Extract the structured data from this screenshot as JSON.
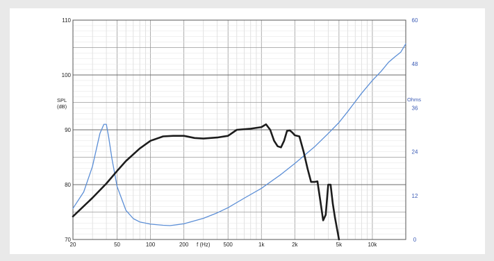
{
  "chart_data": {
    "type": "line",
    "xscale": "log",
    "xlim": [
      20,
      20000
    ],
    "ylim": [
      70,
      110
    ],
    "y2lim": [
      0,
      60
    ],
    "xlabel": "f (Hz)",
    "ylabel_top": "SPL",
    "ylabel_unit": "(dB)",
    "y2label": "Ohms",
    "x_ticks": [
      20,
      50,
      100,
      200,
      500,
      1000,
      2000,
      5000,
      10000
    ],
    "x_tick_labels": [
      "20",
      "50",
      "100",
      "200",
      "500",
      "1k",
      "2k",
      "5k",
      "10k"
    ],
    "y_ticks": [
      70,
      80,
      90,
      100,
      110
    ],
    "y_tick_labels": [
      "70",
      "80",
      "90",
      "100",
      "110"
    ],
    "y2_ticks": [
      0,
      12,
      24,
      36,
      48,
      60
    ],
    "y2_tick_labels": [
      "0",
      "12",
      "24",
      "36",
      "48",
      "60"
    ],
    "grid": true,
    "colors": {
      "spl": "#1c1c1c",
      "impedance": "#5b8ed6",
      "right_axis": "#3b5bb5"
    },
    "series": [
      {
        "axis": "left",
        "x": [
          20,
          30,
          40,
          50,
          60,
          80,
          100,
          130,
          160,
          200,
          250,
          300,
          400,
          500,
          600,
          800,
          1000,
          1100,
          1200,
          1300,
          1400,
          1500,
          1600,
          1700,
          1800,
          1900,
          2000,
          2200,
          2400,
          2600,
          2800,
          3000,
          3200,
          3400,
          3600,
          3800,
          4000,
          4200,
          4400,
          4600,
          4800,
          5000
        ],
        "y": [
          74.2,
          77.6,
          80.2,
          82.5,
          84.3,
          86.6,
          88.0,
          88.8,
          88.9,
          88.9,
          88.5,
          88.4,
          88.6,
          88.9,
          90.0,
          90.2,
          90.5,
          91.0,
          90.0,
          88.0,
          87.0,
          86.8,
          88.0,
          89.8,
          89.9,
          89.5,
          89.0,
          88.8,
          86.0,
          83.0,
          80.5,
          80.5,
          80.6,
          77.0,
          73.5,
          74.5,
          80.0,
          80.0,
          76.5,
          74.0,
          72.0,
          70.0
        ]
      },
      {
        "axis": "right",
        "x": [
          20,
          25,
          30,
          35,
          38,
          40,
          42,
          45,
          50,
          60,
          70,
          80,
          100,
          130,
          150,
          200,
          300,
          400,
          500,
          700,
          1000,
          1500,
          2000,
          3000,
          4000,
          5000,
          6000,
          8000,
          10000,
          12000,
          14000,
          16000,
          18000,
          20000
        ],
        "y": [
          8.5,
          13.0,
          20.0,
          29.0,
          31.5,
          31.5,
          28.0,
          22.0,
          14.5,
          8.0,
          5.7,
          4.8,
          4.2,
          3.9,
          3.8,
          4.3,
          5.8,
          7.3,
          8.7,
          11.3,
          14.0,
          17.8,
          20.8,
          25.3,
          29.0,
          32.0,
          35.0,
          40.0,
          43.5,
          46.0,
          48.5,
          50.0,
          51.2,
          53.5
        ]
      }
    ]
  }
}
